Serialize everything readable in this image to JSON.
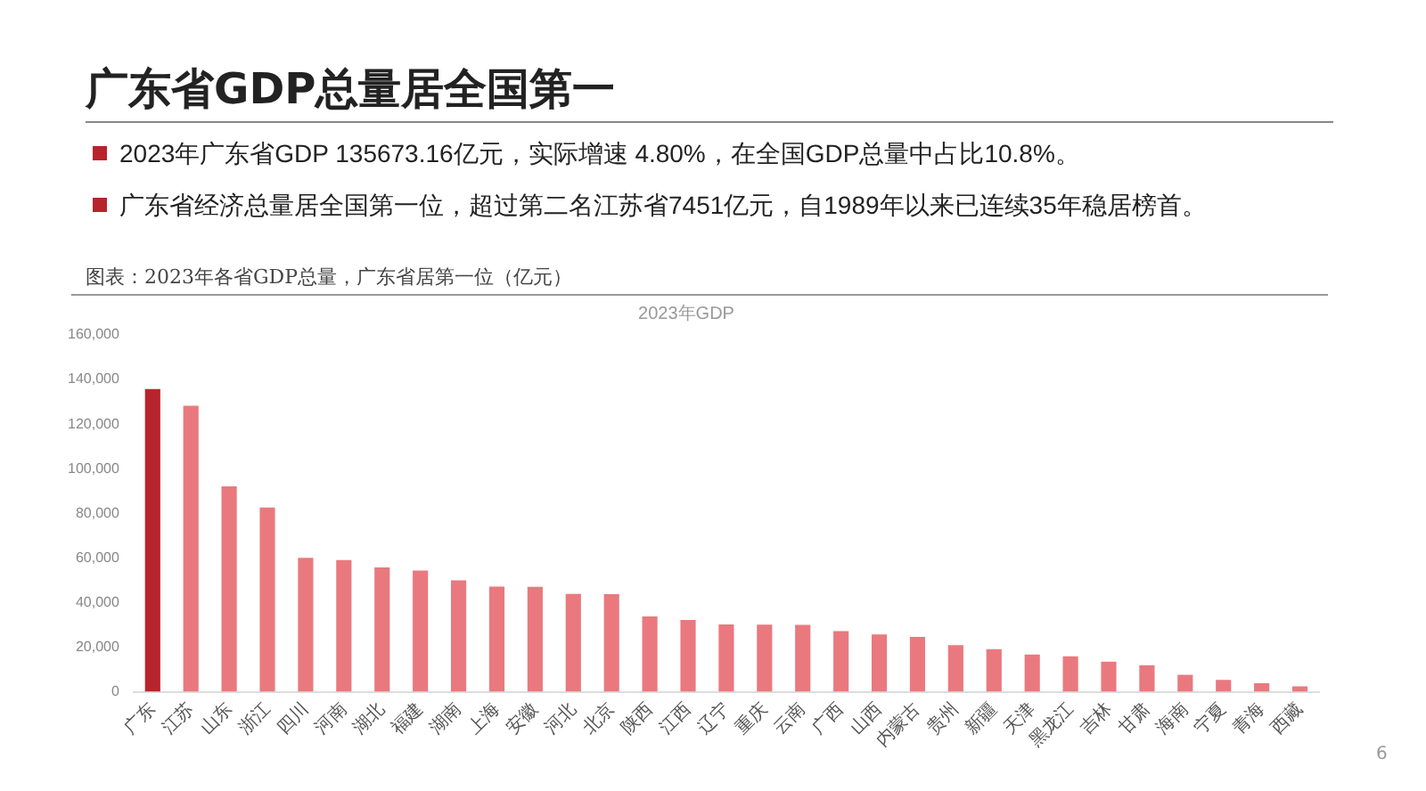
{
  "chart_data": {
    "type": "bar",
    "title": "广东省GDP总量居全国第一",
    "subtitle": "2023年GDP",
    "annotations": [
      "2023年广东省GDP 135673.16亿元，实际增速 4.80%，在全国GDP总量中占比10.8%。",
      "广东省经济总量居全国第一位，超过第二名江苏省7451亿元，自1989年以来已连续35年稳居榜首。",
      "图表：2023年各省GDP总量，广东省居第一位（亿元）",
      "6"
    ],
    "categories": [
      "广东",
      "江苏",
      "山东",
      "浙江",
      "四川",
      "河南",
      "湖北",
      "福建",
      "湖南",
      "上海",
      "安徽",
      "河北",
      "北京",
      "陕西",
      "江西",
      "辽宁",
      "重庆",
      "云南",
      "广西",
      "山西",
      "内蒙古",
      "贵州",
      "新疆",
      "天津",
      "黑龙江",
      "吉林",
      "甘肃",
      "海南",
      "宁夏",
      "青海",
      "西藏"
    ],
    "values": [
      135700,
      128200,
      92100,
      82600,
      60100,
      59100,
      55800,
      54400,
      50000,
      47200,
      47100,
      43900,
      43800,
      33800,
      32200,
      30200,
      30100,
      30000,
      27200,
      25700,
      24600,
      20900,
      19100,
      16700,
      15900,
      13500,
      11900,
      7600,
      5300,
      3800,
      2400
    ],
    "colors": [
      "#b8242b",
      "#e9797e",
      "#e9797e",
      "#e9797e",
      "#e9797e",
      "#e9797e",
      "#e9797e",
      "#e9797e",
      "#e9797e",
      "#e9797e",
      "#e9797e",
      "#e9797e",
      "#e9797e",
      "#e9797e",
      "#e9797e",
      "#e9797e",
      "#e9797e",
      "#e9797e",
      "#e9797e",
      "#e9797e",
      "#e9797e",
      "#e9797e",
      "#e9797e",
      "#e9797e",
      "#e9797e",
      "#e9797e",
      "#e9797e",
      "#e9797e",
      "#e9797e",
      "#e9797e",
      "#e9797e"
    ],
    "ylim": [
      0,
      160000
    ],
    "yticks": [
      {
        "value": 0,
        "label": "0"
      },
      {
        "value": 20000,
        "label": "20,000"
      },
      {
        "value": 40000,
        "label": "40,000"
      },
      {
        "value": 60000,
        "label": "60,000"
      },
      {
        "value": 80000,
        "label": "80,000"
      },
      {
        "value": 100000,
        "label": "100,000"
      },
      {
        "value": 120000,
        "label": "120,000"
      },
      {
        "value": 140000,
        "label": "140,000"
      },
      {
        "value": 160000,
        "label": "160,000"
      }
    ],
    "grid": false,
    "legend": false
  }
}
